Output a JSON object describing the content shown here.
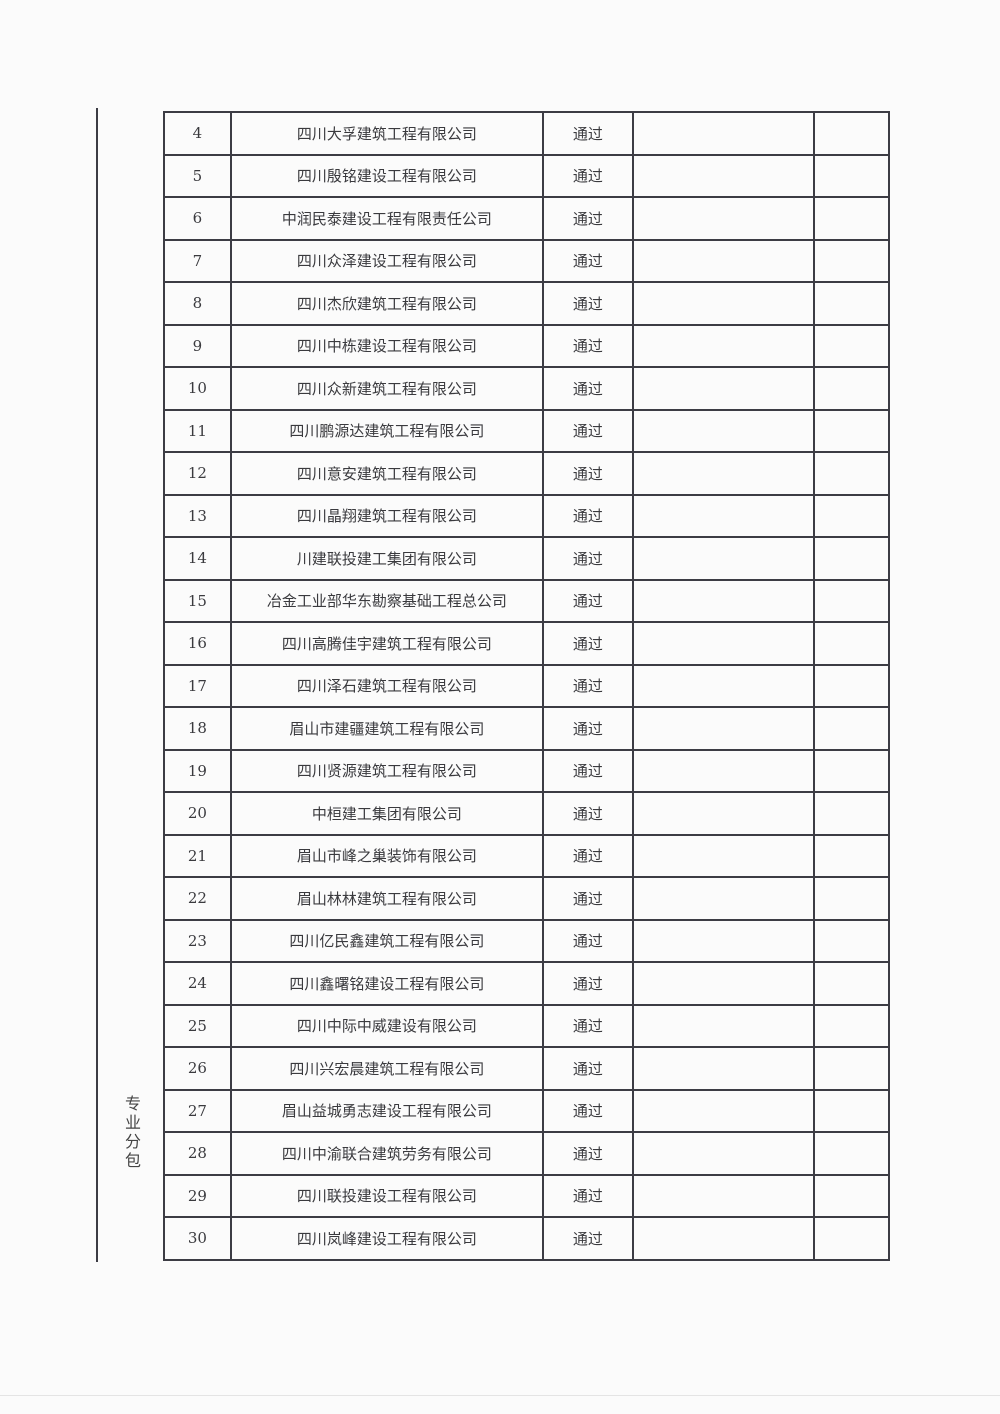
{
  "section_label": "专业分包",
  "rows": [
    {
      "no": "4",
      "company": "四川大孚建筑工程有限公司",
      "result": "通过"
    },
    {
      "no": "5",
      "company": "四川殷铭建设工程有限公司",
      "result": "通过"
    },
    {
      "no": "6",
      "company": "中润民泰建设工程有限责任公司",
      "result": "通过"
    },
    {
      "no": "7",
      "company": "四川众泽建设工程有限公司",
      "result": "通过"
    },
    {
      "no": "8",
      "company": "四川杰欣建筑工程有限公司",
      "result": "通过"
    },
    {
      "no": "9",
      "company": "四川中栋建设工程有限公司",
      "result": "通过"
    },
    {
      "no": "10",
      "company": "四川众新建筑工程有限公司",
      "result": "通过"
    },
    {
      "no": "11",
      "company": "四川鹏源达建筑工程有限公司",
      "result": "通过"
    },
    {
      "no": "12",
      "company": "四川意安建筑工程有限公司",
      "result": "通过"
    },
    {
      "no": "13",
      "company": "四川晶翔建筑工程有限公司",
      "result": "通过"
    },
    {
      "no": "14",
      "company": "川建联投建工集团有限公司",
      "result": "通过"
    },
    {
      "no": "15",
      "company": "冶金工业部华东勘察基础工程总公司",
      "result": "通过"
    },
    {
      "no": "16",
      "company": "四川高腾佳宇建筑工程有限公司",
      "result": "通过"
    },
    {
      "no": "17",
      "company": "四川泽石建筑工程有限公司",
      "result": "通过"
    },
    {
      "no": "18",
      "company": "眉山市建疆建筑工程有限公司",
      "result": "通过"
    },
    {
      "no": "19",
      "company": "四川贤源建筑工程有限公司",
      "result": "通过"
    },
    {
      "no": "20",
      "company": "中桓建工集团有限公司",
      "result": "通过"
    },
    {
      "no": "21",
      "company": "眉山市峰之巢装饰有限公司",
      "result": "通过"
    },
    {
      "no": "22",
      "company": "眉山林林建筑工程有限公司",
      "result": "通过"
    },
    {
      "no": "23",
      "company": "四川亿民鑫建筑工程有限公司",
      "result": "通过"
    },
    {
      "no": "24",
      "company": "四川鑫曙铭建设工程有限公司",
      "result": "通过"
    },
    {
      "no": "25",
      "company": "四川中际中威建设有限公司",
      "result": "通过"
    },
    {
      "no": "26",
      "company": "四川兴宏晨建筑工程有限公司",
      "result": "通过"
    },
    {
      "no": "27",
      "company": "眉山益城勇志建设工程有限公司",
      "result": "通过"
    },
    {
      "no": "28",
      "company": "四川中渝联合建筑劳务有限公司",
      "result": "通过"
    },
    {
      "no": "29",
      "company": "四川联投建设工程有限公司",
      "result": "通过"
    },
    {
      "no": "30",
      "company": "四川岚峰建设工程有限公司",
      "result": "通过"
    }
  ]
}
